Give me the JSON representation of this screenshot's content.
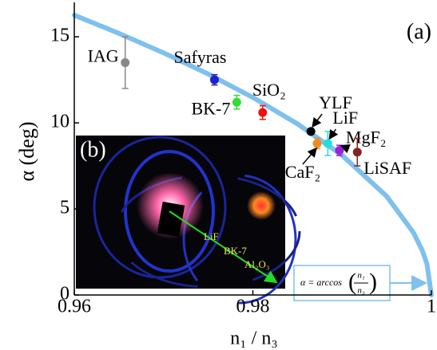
{
  "chart_data": {
    "type": "scatter",
    "panel_label": "(a)",
    "inset_label": "(b)",
    "xlabel": "n₁ / n₃",
    "ylabel": "α (deg)",
    "xlim": [
      0.96,
      1
    ],
    "ylim": [
      0,
      17
    ],
    "xticks": [
      0.96,
      0.98,
      1
    ],
    "yticks": [
      0,
      5,
      10,
      15
    ],
    "curve": {
      "color": "#7ec0ee",
      "x": [
        0.96,
        0.965,
        0.97,
        0.975,
        0.98,
        0.985,
        0.99,
        0.995,
        0.998,
        0.999,
        0.9995,
        1
      ],
      "y": [
        16.26,
        15.2,
        14.07,
        12.84,
        11.48,
        9.94,
        8.11,
        5.73,
        3.62,
        2.56,
        1.81,
        0
      ]
    },
    "points": [
      {
        "name": "IAG",
        "x": 0.9657,
        "y": 13.5,
        "err": 1.5,
        "color": "#888888"
      },
      {
        "name": "Safyras",
        "x": 0.9757,
        "y": 12.5,
        "err": 0.3,
        "color": "#1f1fcc"
      },
      {
        "name": "BK-7",
        "x": 0.9782,
        "y": 11.2,
        "err": 0.4,
        "color": "#33dd33"
      },
      {
        "name": "SiO₂",
        "x": 0.9811,
        "y": 10.6,
        "err": 0.4,
        "color": "#ee1111"
      },
      {
        "name": "YLF",
        "x": 0.9865,
        "y": 9.5,
        "err": 0,
        "color": "#000000"
      },
      {
        "name": "CaF₂",
        "x": 0.9872,
        "y": 8.8,
        "err": 0.3,
        "color": "#f08a20"
      },
      {
        "name": "LiF",
        "x": 0.9884,
        "y": 8.8,
        "err": 0.7,
        "color": "#22dddd"
      },
      {
        "name": "MgF₂",
        "x": 0.9897,
        "y": 8.4,
        "err": 0.3,
        "color": "#9922dd"
      },
      {
        "name": "LiSAF",
        "x": 0.9917,
        "y": 8.3,
        "err": 0.8,
        "color": "#882222"
      }
    ],
    "formula": {
      "lhs": "α = arccos",
      "num": "n₁",
      "den": "n₃"
    },
    "inset_texts": [
      "LiF",
      "BK-7",
      "Al₂O₃"
    ]
  }
}
